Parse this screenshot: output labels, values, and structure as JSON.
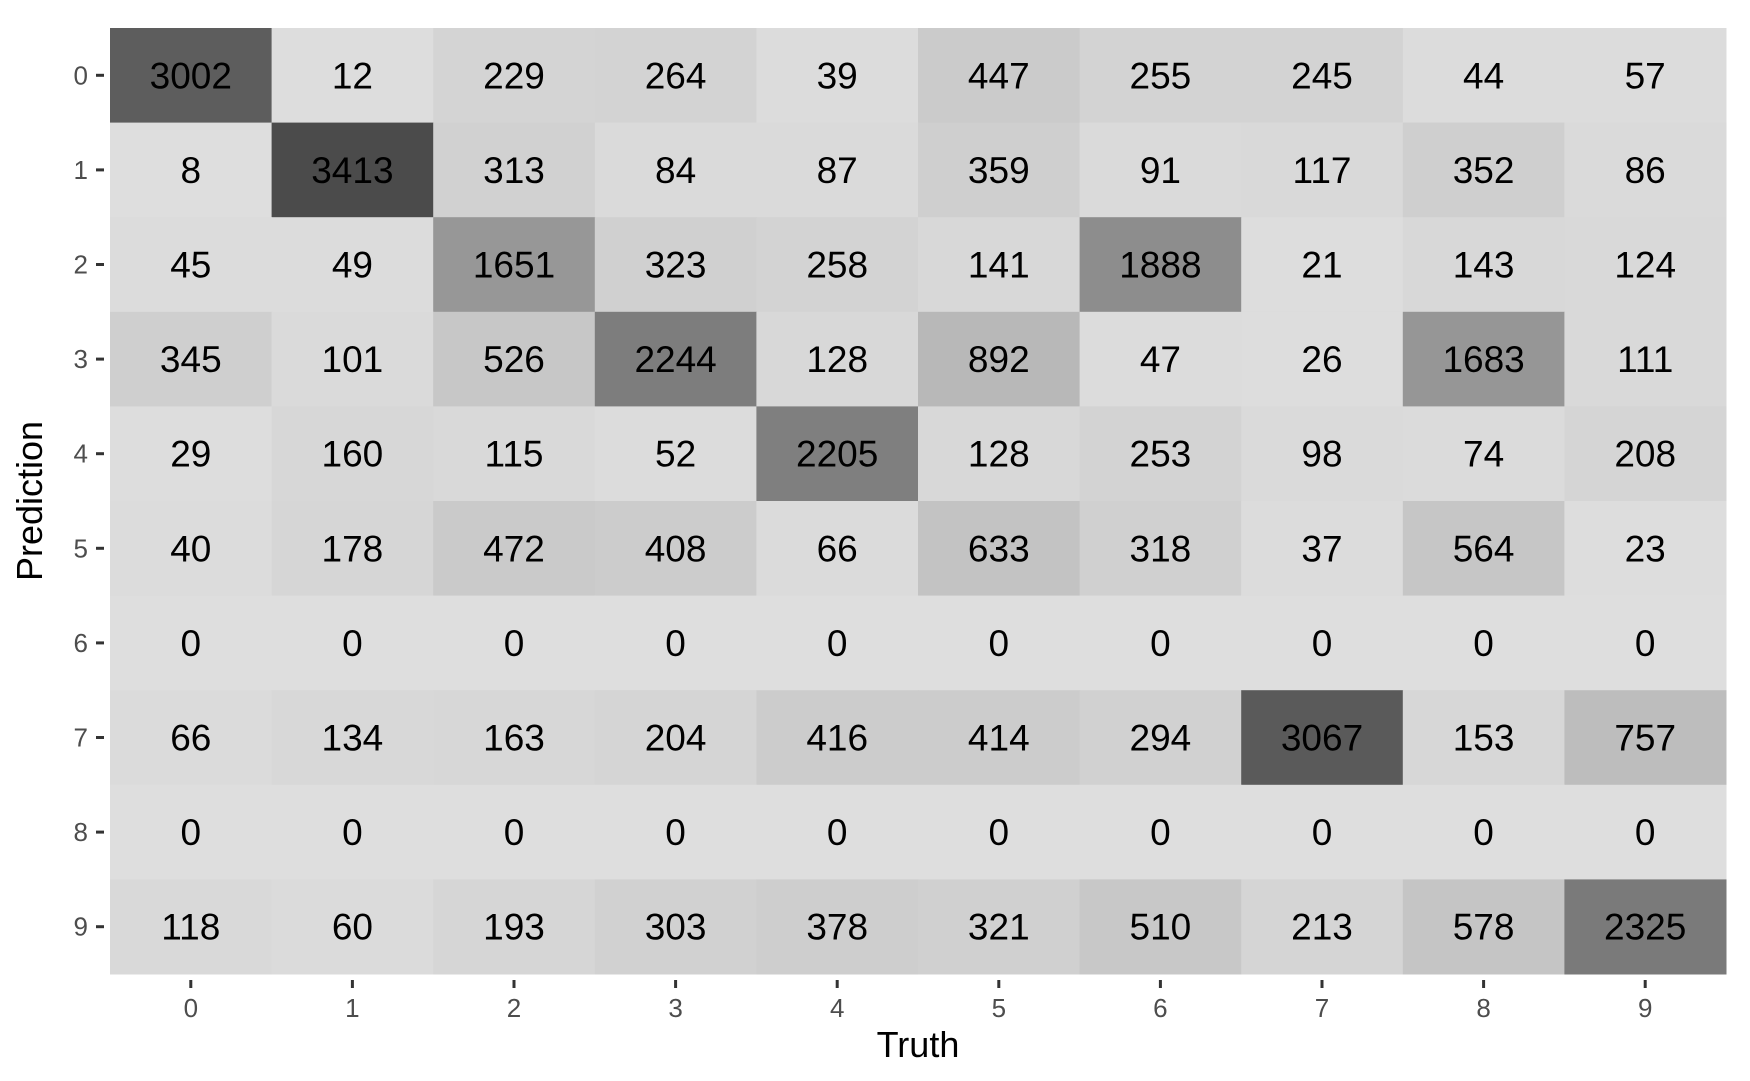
{
  "chart_data": {
    "type": "heatmap",
    "title": "",
    "xlabel": "Truth",
    "ylabel": "Prediction",
    "x_categories": [
      "0",
      "1",
      "2",
      "3",
      "4",
      "5",
      "6",
      "7",
      "8",
      "9"
    ],
    "y_categories": [
      "0",
      "1",
      "2",
      "3",
      "4",
      "5",
      "6",
      "7",
      "8",
      "9"
    ],
    "values": [
      [
        3002,
        12,
        229,
        264,
        39,
        447,
        255,
        245,
        44,
        57
      ],
      [
        8,
        3413,
        313,
        84,
        87,
        359,
        91,
        117,
        352,
        86
      ],
      [
        45,
        49,
        1651,
        323,
        258,
        141,
        1888,
        21,
        143,
        124
      ],
      [
        345,
        101,
        526,
        2244,
        128,
        892,
        47,
        26,
        1683,
        111
      ],
      [
        29,
        160,
        115,
        52,
        2205,
        128,
        253,
        98,
        74,
        208
      ],
      [
        40,
        178,
        472,
        408,
        66,
        633,
        318,
        37,
        564,
        23
      ],
      [
        0,
        0,
        0,
        0,
        0,
        0,
        0,
        0,
        0,
        0
      ],
      [
        66,
        134,
        163,
        204,
        416,
        414,
        294,
        3067,
        153,
        757
      ],
      [
        0,
        0,
        0,
        0,
        0,
        0,
        0,
        0,
        0,
        0
      ],
      [
        118,
        60,
        193,
        303,
        378,
        321,
        510,
        213,
        578,
        2325
      ]
    ],
    "color_low": "#dedede",
    "color_high": "#4b4b4b",
    "value_range": [
      0,
      3413
    ],
    "legend": "none",
    "grid": false
  }
}
